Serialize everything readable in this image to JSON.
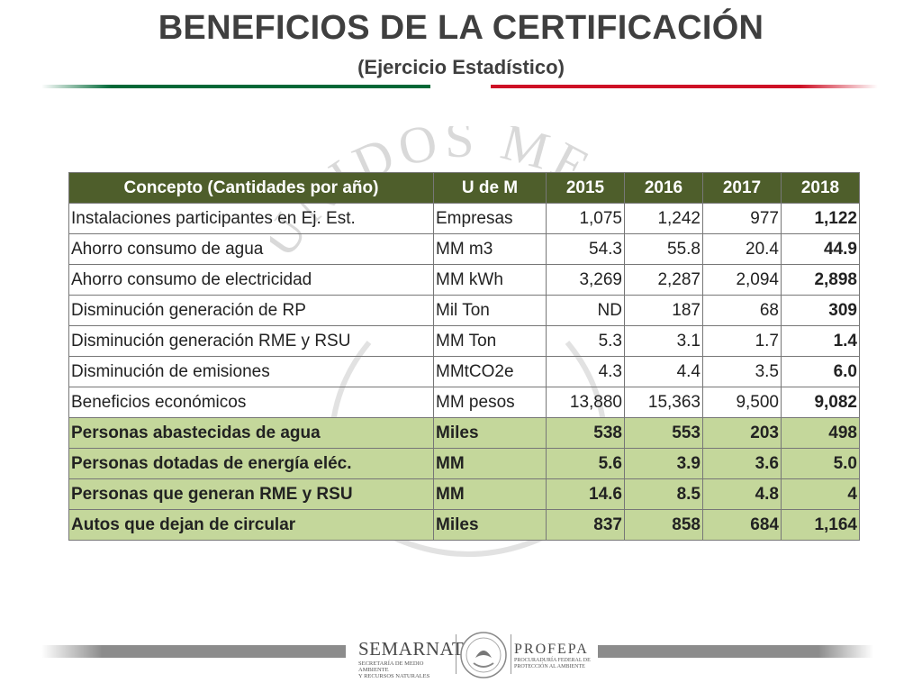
{
  "header": {
    "title": "BENEFICIOS DE LA CERTIFICACIÓN",
    "subtitle": "(Ejercicio Estadístico)"
  },
  "colors": {
    "header_bg": "#4e5e2b",
    "highlight_rows": "#c4d79b",
    "rule_green": "#006837",
    "rule_red": "#ce1126"
  },
  "table": {
    "headers": [
      "Concepto (Cantidades por año)",
      "U de M",
      "2015",
      "2016",
      "2017",
      "2018"
    ],
    "rows": [
      {
        "concepto": "Instalaciones participantes en Ej. Est.",
        "unidad": "Empresas",
        "y2015": "1,075",
        "y2016": "1,242",
        "y2017": "977",
        "y2018": "1,122"
      },
      {
        "concepto": "Ahorro consumo de agua",
        "unidad": "MM m3",
        "y2015": "54.3",
        "y2016": "55.8",
        "y2017": "20.4",
        "y2018": "44.9"
      },
      {
        "concepto": "Ahorro consumo de electricidad",
        "unidad": "MM kWh",
        "y2015": "3,269",
        "y2016": "2,287",
        "y2017": "2,094",
        "y2018": "2,898"
      },
      {
        "concepto": "Disminución generación de RP",
        "unidad": "Mil Ton",
        "y2015": "ND",
        "y2016": "187",
        "y2017": "68",
        "y2018": "309"
      },
      {
        "concepto": "Disminución generación RME y RSU",
        "unidad": "MM Ton",
        "y2015": "5.3",
        "y2016": "3.1",
        "y2017": "1.7",
        "y2018": "1.4"
      },
      {
        "concepto": "Disminución de emisiones",
        "unidad": "MMtCO2e",
        "y2015": "4.3",
        "y2016": "4.4",
        "y2017": "3.5",
        "y2018": "6.0"
      },
      {
        "concepto": "Beneficios económicos",
        "unidad": "MM pesos",
        "y2015": "13,880",
        "y2016": "15,363",
        "y2017": "9,500",
        "y2018": "9,082"
      }
    ],
    "highlight_rows": [
      {
        "concepto": "Personas abastecidas de agua",
        "unidad": "Miles",
        "y2015": "538",
        "y2016": "553",
        "y2017": "203",
        "y2018": "498"
      },
      {
        "concepto": "Personas dotadas de energía eléc.",
        "unidad": "MM",
        "y2015": "5.6",
        "y2016": "3.9",
        "y2017": "3.6",
        "y2018": "5.0"
      },
      {
        "concepto": "Personas que generan RME y RSU",
        "unidad": "MM",
        "y2015": "14.6",
        "y2016": "8.5",
        "y2017": "4.8",
        "y2018": "4"
      },
      {
        "concepto": "Autos que dejan de circular",
        "unidad": "Miles",
        "y2015": "837",
        "y2016": "858",
        "y2017": "684",
        "y2018": "1,164"
      }
    ]
  },
  "watermark": {
    "text": "UNIDOS ME"
  },
  "footer": {
    "semarnat": {
      "name": "SEMARNAT",
      "line1": "SECRETARÍA DE MEDIO AMBIENTE",
      "line2": "Y RECURSOS NATURALES"
    },
    "profepa": {
      "name": "PROFEPA",
      "line1": "PROCURADURÍA FEDERAL DE",
      "line2": "PROTECCIÓN AL AMBIENTE"
    },
    "seal_icon": "mexico-seal-icon"
  }
}
